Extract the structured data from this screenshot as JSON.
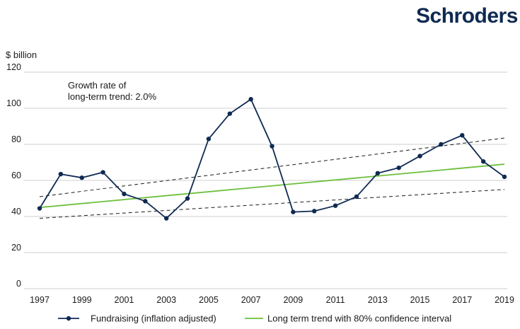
{
  "brand": {
    "name": "Schroders",
    "color": "#0f2a52"
  },
  "chart_data": {
    "type": "line",
    "ylabel": "$ billion",
    "ylim": [
      0,
      120
    ],
    "yticks": [
      0,
      20,
      40,
      60,
      80,
      100,
      120
    ],
    "xlim": [
      1997,
      2019
    ],
    "xticks": [
      1997,
      1999,
      2001,
      2003,
      2005,
      2007,
      2009,
      2011,
      2013,
      2015,
      2017,
      2019
    ],
    "grid": "horizontal",
    "legend_position": "bottom",
    "annotation": [
      "Growth rate of",
      "long-term trend: 2.0%"
    ],
    "series": [
      {
        "name": "Fundraising (inflation adjusted)",
        "color": "#0f2a52",
        "marker": "circle",
        "x": [
          1997,
          1998,
          1999,
          2000,
          2001,
          2002,
          2003,
          2004,
          2005,
          2006,
          2007,
          2008,
          2009,
          2010,
          2011,
          2012,
          2013,
          2014,
          2015,
          2016,
          2017,
          2018,
          2019
        ],
        "y": [
          44.5,
          63.5,
          61.5,
          64.5,
          52.5,
          48.5,
          39,
          50,
          83,
          97,
          105,
          79,
          42.5,
          43,
          46,
          51,
          64,
          67,
          73.5,
          80,
          85,
          70.5,
          62
        ]
      },
      {
        "name": "Long term trend with 80% confidence interval",
        "color": "#6cbf3d",
        "x": [
          1997,
          2019
        ],
        "y": [
          45,
          69
        ],
        "confidence_interval": {
          "color": "#1a1a1a",
          "style": "dashed",
          "upper": {
            "x": [
              1997,
              2019
            ],
            "y": [
              51,
              83.5
            ]
          },
          "lower": {
            "x": [
              1997,
              2019
            ],
            "y": [
              39,
              55
            ]
          }
        }
      }
    ]
  }
}
